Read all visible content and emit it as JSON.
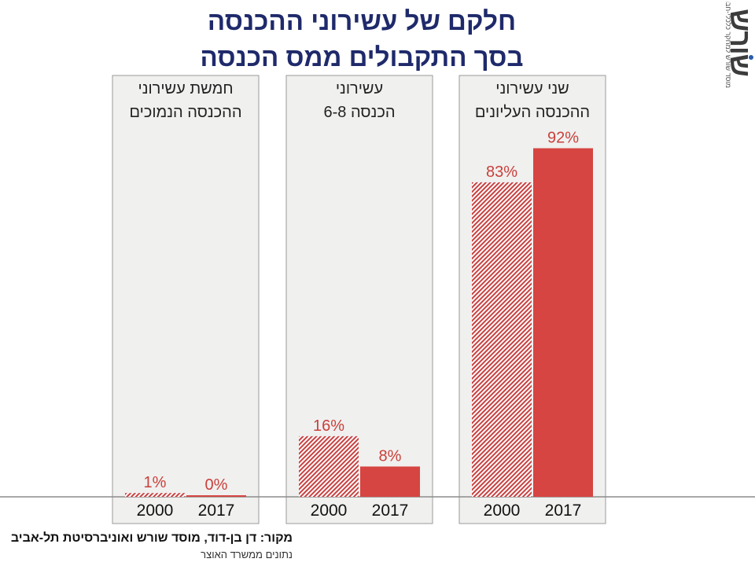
{
  "title_line1": "חלקם של עשירוני ההכנסה",
  "title_line2": "בסך התקבולים ממס הכנסה",
  "logo": {
    "word": "שורש",
    "tagline": "מוסד שורש למחקר כלכלי-חברתי"
  },
  "source": {
    "line1": "מקור:  דן בן-דוד, מוסד שורש ואוניברסיטת תל-אביב",
    "line2": "נתונים ממשרד האוצר"
  },
  "colors": {
    "bar_solid": "#d64541",
    "hatch": "#c94040",
    "value_label": "#c9403a",
    "title": "#1f2a6b",
    "panel_bg": "#f0f0ef",
    "panel_border": "#9a9a9a"
  },
  "chart_data": {
    "type": "bar",
    "unit": "%",
    "ylim": [
      0,
      100
    ],
    "legend": "none",
    "categories": [
      "2000",
      "2017"
    ],
    "panels": [
      {
        "label_line1": "חמשת עשירוני",
        "label_line2": "ההכנסה הנמוכים",
        "values": [
          1,
          0
        ],
        "value_labels": [
          "1%",
          "0%"
        ]
      },
      {
        "label_line1": "עשירוני",
        "label_line2": "הכנסה 6-8",
        "values": [
          16,
          8
        ],
        "value_labels": [
          "16%",
          "8%"
        ]
      },
      {
        "label_line1": "שני עשירוני",
        "label_line2": "ההכנסה העליונים",
        "values": [
          83,
          92
        ],
        "value_labels": [
          "83%",
          "92%"
        ]
      }
    ]
  }
}
